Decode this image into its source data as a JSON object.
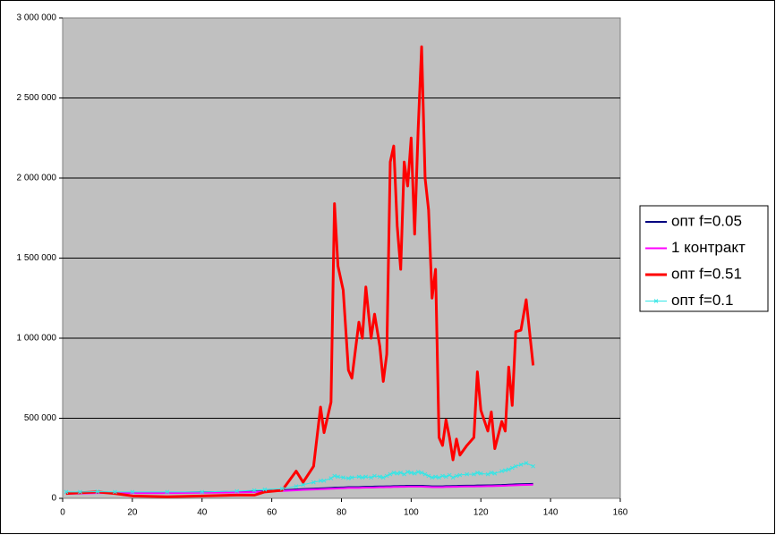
{
  "chart_data": {
    "type": "line",
    "x": [
      1,
      5,
      10,
      15,
      20,
      30,
      40,
      50,
      55,
      58,
      63,
      67,
      69,
      72,
      74,
      75,
      77,
      78,
      79,
      80.5,
      82,
      83,
      85,
      86,
      87,
      88.5,
      89.5,
      91,
      92,
      93,
      94,
      95,
      96,
      97,
      98,
      99,
      100,
      101,
      102,
      103,
      104,
      105,
      106,
      107,
      108,
      109,
      110,
      111,
      112,
      113,
      114,
      116,
      118,
      119,
      120,
      122,
      123,
      124,
      126,
      127,
      128,
      129,
      130,
      131.5,
      133,
      135
    ],
    "series": [
      {
        "name": "опт f=0.05",
        "color": "#000080",
        "marker": false,
        "width": 2,
        "values": [
          30000,
          32000,
          35000,
          35000,
          35000,
          35000,
          38000,
          40000,
          42000,
          45000,
          50000,
          55000,
          58000,
          60000,
          62000,
          63000,
          65000,
          66000,
          67000,
          68000,
          70000,
          70000,
          70000,
          71000,
          72000,
          72000,
          73000,
          74000,
          74000,
          75000,
          75000,
          76000,
          76000,
          77000,
          77000,
          78000,
          78000,
          78000,
          78000,
          78000,
          77000,
          76000,
          75000,
          75000,
          75000,
          75000,
          76000,
          76000,
          77000,
          77000,
          78000,
          79000,
          79000,
          80000,
          80000,
          81000,
          81000,
          82000,
          83000,
          84000,
          85000,
          86000,
          87000,
          88000,
          89000,
          90000
        ]
      },
      {
        "name": "1 контракт",
        "color": "#ff00ff",
        "marker": false,
        "width": 2,
        "values": [
          28000,
          30000,
          33000,
          33000,
          33000,
          33000,
          35000,
          37000,
          39000,
          42000,
          46000,
          50000,
          53000,
          55000,
          57000,
          58000,
          60000,
          61000,
          62000,
          63000,
          65000,
          65000,
          65000,
          66000,
          67000,
          67000,
          68000,
          69000,
          69000,
          70000,
          70000,
          71000,
          71000,
          72000,
          72000,
          73000,
          73000,
          73000,
          73000,
          73000,
          72000,
          71000,
          70000,
          70000,
          70000,
          70000,
          71000,
          71000,
          72000,
          72000,
          73000,
          74000,
          74000,
          75000,
          75000,
          76000,
          76000,
          77000,
          78000,
          79000,
          80000,
          81000,
          82000,
          83000,
          84000,
          85000
        ]
      },
      {
        "name": "опт f=0.51",
        "color": "#ff0000",
        "marker": false,
        "width": 3,
        "values": [
          30000,
          35000,
          40000,
          30000,
          15000,
          10000,
          15000,
          20000,
          20000,
          40000,
          50000,
          170000,
          100000,
          200000,
          570000,
          410000,
          600000,
          1840000,
          1450000,
          1300000,
          800000,
          750000,
          1100000,
          1000000,
          1320000,
          1000000,
          1150000,
          950000,
          730000,
          900000,
          2100000,
          2200000,
          1700000,
          1430000,
          2100000,
          1950000,
          2250000,
          1650000,
          2300000,
          2820000,
          2000000,
          1800000,
          1250000,
          1430000,
          380000,
          330000,
          490000,
          380000,
          240000,
          370000,
          270000,
          330000,
          380000,
          790000,
          550000,
          420000,
          540000,
          310000,
          480000,
          420000,
          820000,
          580000,
          1040000,
          1050000,
          1240000,
          830000
        ]
      },
      {
        "name": "опт f=0.1",
        "color": "#33e6e6",
        "marker": true,
        "width": 1,
        "values": [
          40000,
          40000,
          42000,
          40000,
          40000,
          40000,
          40000,
          45000,
          50000,
          55000,
          60000,
          75000,
          85000,
          100000,
          110000,
          110000,
          125000,
          140000,
          135000,
          130000,
          125000,
          130000,
          135000,
          130000,
          135000,
          130000,
          140000,
          135000,
          130000,
          140000,
          150000,
          160000,
          155000,
          160000,
          150000,
          165000,
          160000,
          155000,
          165000,
          160000,
          150000,
          140000,
          130000,
          135000,
          130000,
          140000,
          135000,
          145000,
          130000,
          140000,
          145000,
          150000,
          150000,
          160000,
          155000,
          150000,
          160000,
          155000,
          170000,
          175000,
          180000,
          190000,
          200000,
          210000,
          220000,
          200000
        ]
      }
    ],
    "xlim": [
      0,
      160
    ],
    "xticks": [
      0,
      20,
      40,
      60,
      80,
      100,
      120,
      140,
      160
    ],
    "ylim": [
      0,
      3000000
    ],
    "yticks": [
      0,
      {
        "value": 500000,
        "label": "500 000"
      },
      {
        "value": 1000000,
        "label": "1 000 000"
      },
      {
        "value": 1500000,
        "label": "1 500 000"
      },
      {
        "value": 2000000,
        "label": "2 000 000"
      },
      {
        "value": 2500000,
        "label": "2 500 000"
      },
      {
        "value": 3000000,
        "label": "3 000 000"
      }
    ],
    "grid": true,
    "legend": "right"
  }
}
